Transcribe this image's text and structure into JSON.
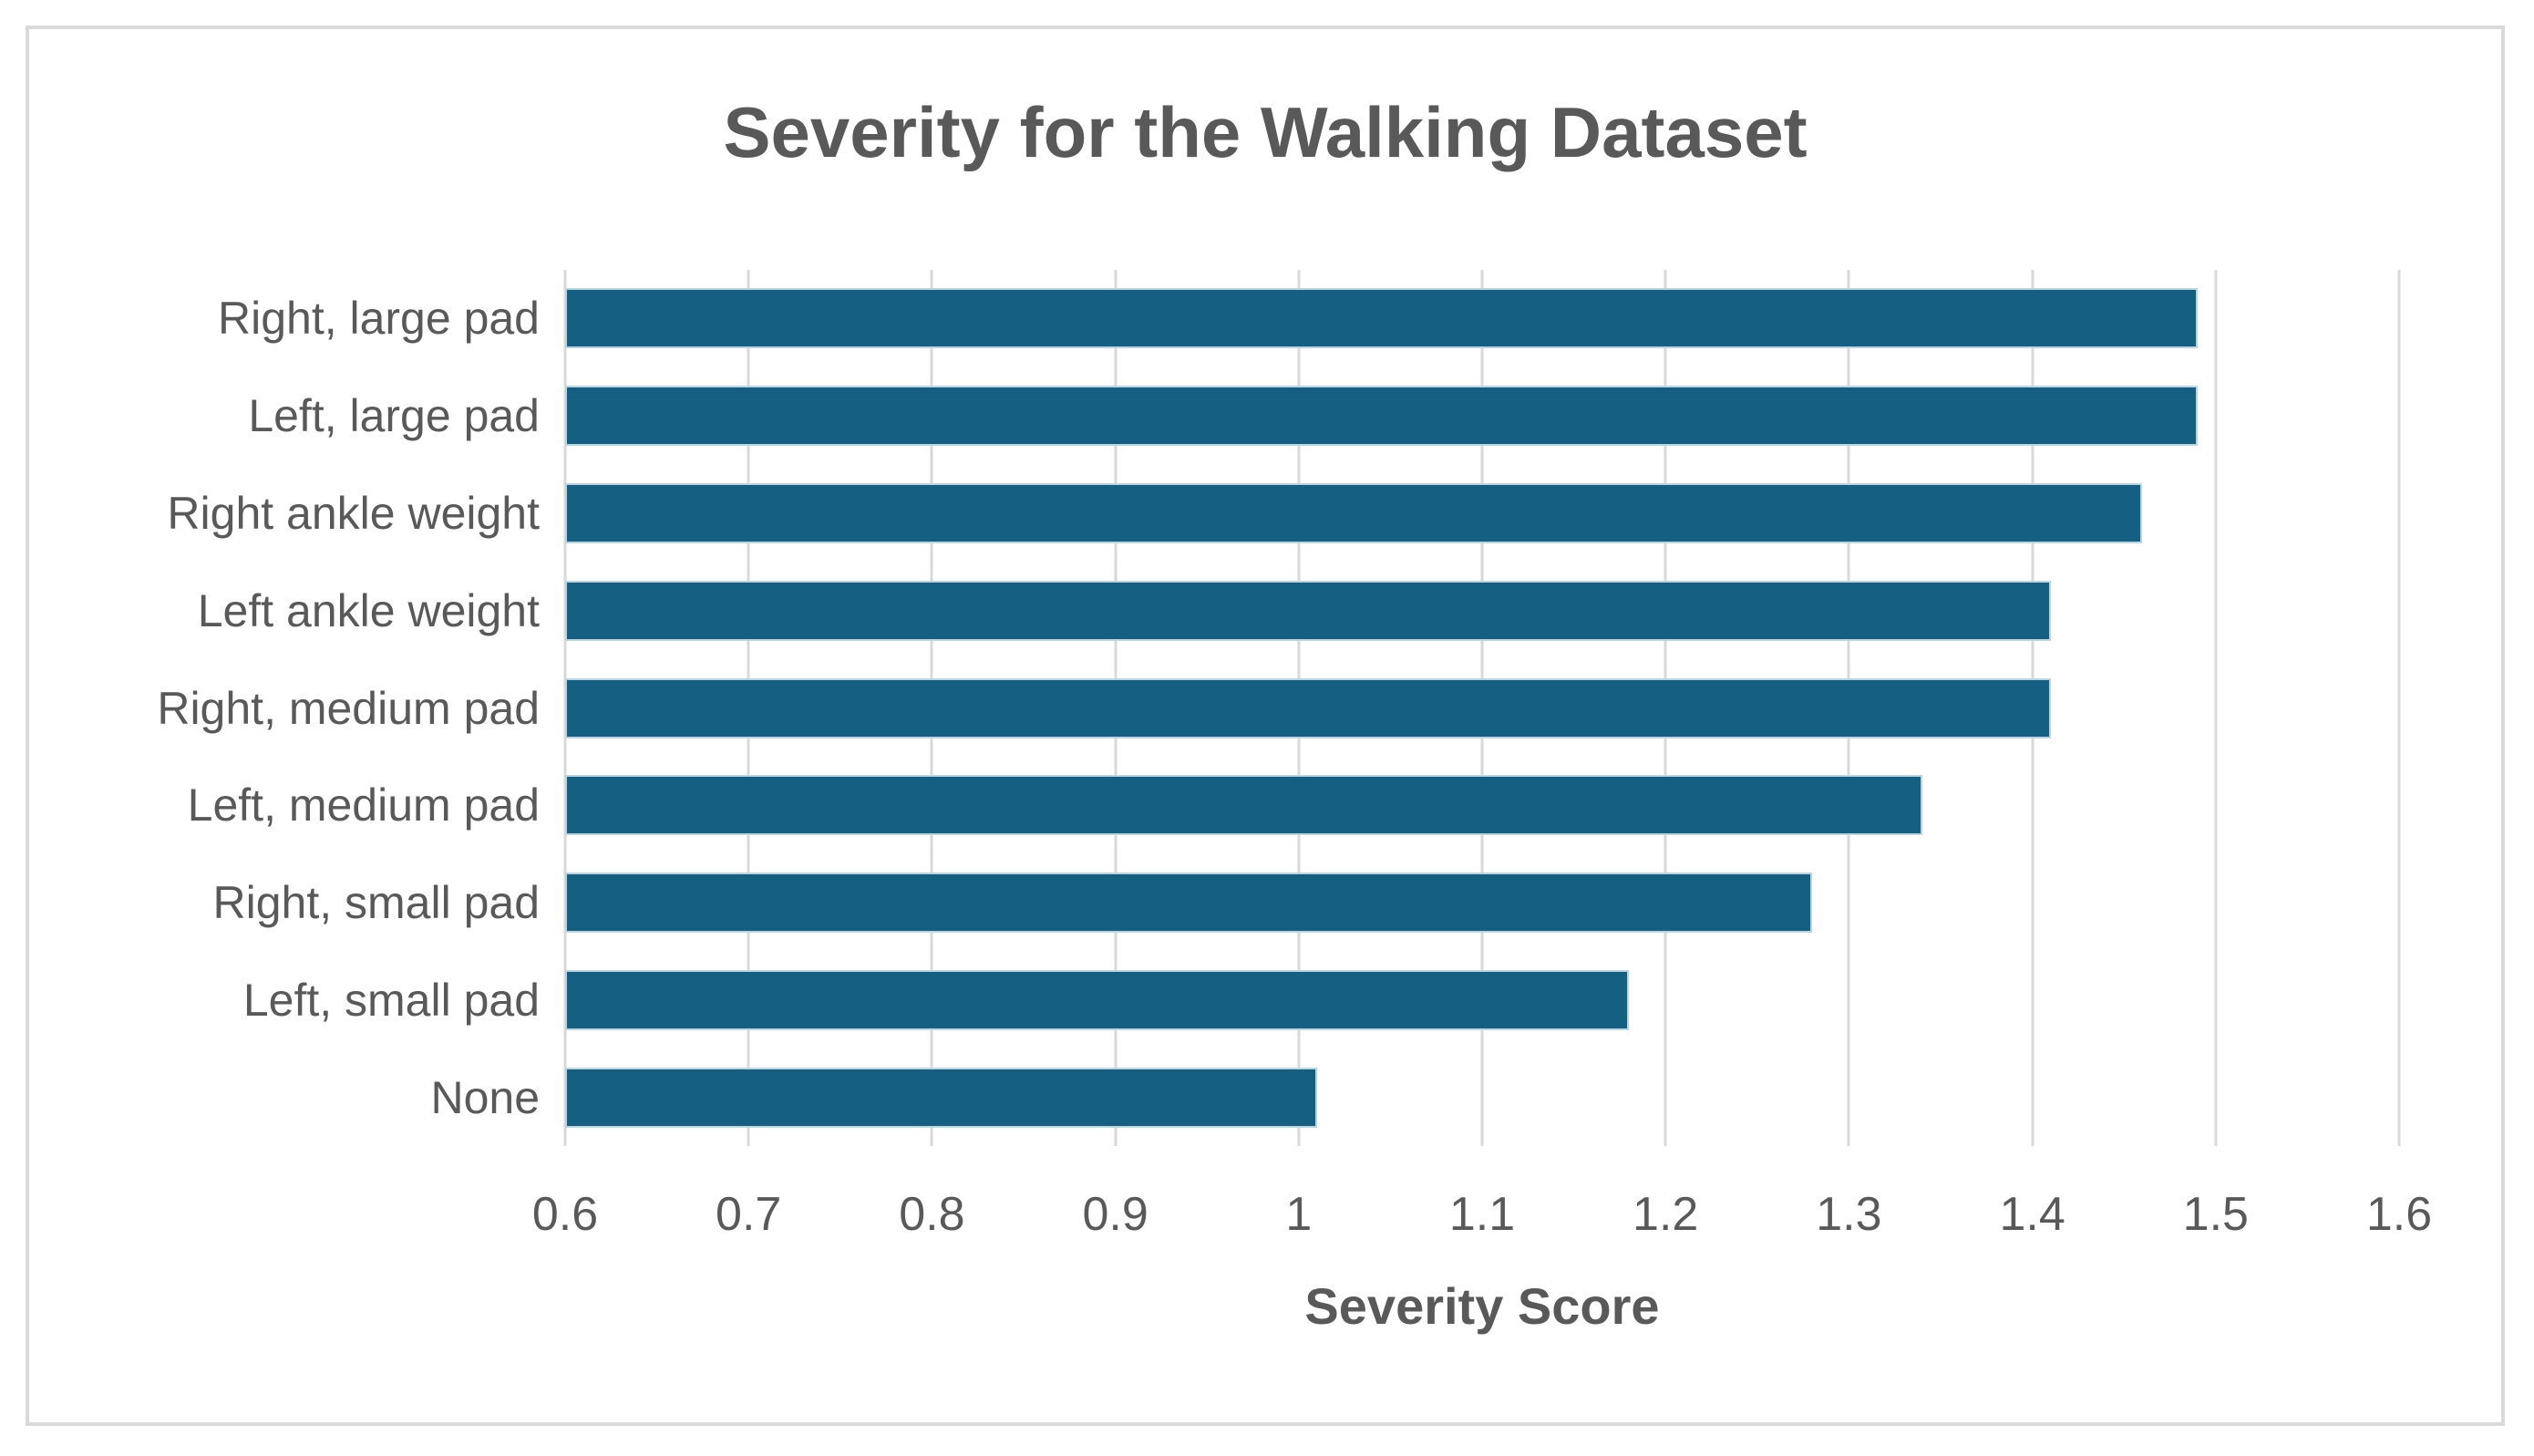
{
  "chart_data": {
    "type": "bar",
    "orientation": "horizontal",
    "title": "Severity for the Walking Dataset",
    "xlabel": "Severity Score",
    "ylabel": "",
    "categories": [
      "Right, large pad",
      "Left, large pad",
      "Right ankle weight",
      "Left ankle weight",
      "Right, medium pad",
      "Left, medium pad",
      "Right, small pad",
      "Left, small pad",
      "None"
    ],
    "values": [
      1.49,
      1.49,
      1.46,
      1.41,
      1.41,
      1.34,
      1.28,
      1.18,
      1.01
    ],
    "xlim": [
      0.6,
      1.6
    ],
    "x_ticks": [
      "0.6",
      "0.7",
      "0.8",
      "0.9",
      "1",
      "1.1",
      "1.2",
      "1.3",
      "1.4",
      "1.5",
      "1.6"
    ],
    "x_tick_values": [
      0.6,
      0.7,
      0.8,
      0.9,
      1.0,
      1.1,
      1.2,
      1.3,
      1.4,
      1.5,
      1.6
    ],
    "grid": "vertical-on",
    "legend": "none",
    "colors": {
      "bar_fill": "#156082",
      "bar_edge": "#bcd4e0",
      "text": "#595959",
      "gridline": "#d9d9d9",
      "frame_border": "#d9d9d9",
      "background": "#ffffff"
    }
  }
}
